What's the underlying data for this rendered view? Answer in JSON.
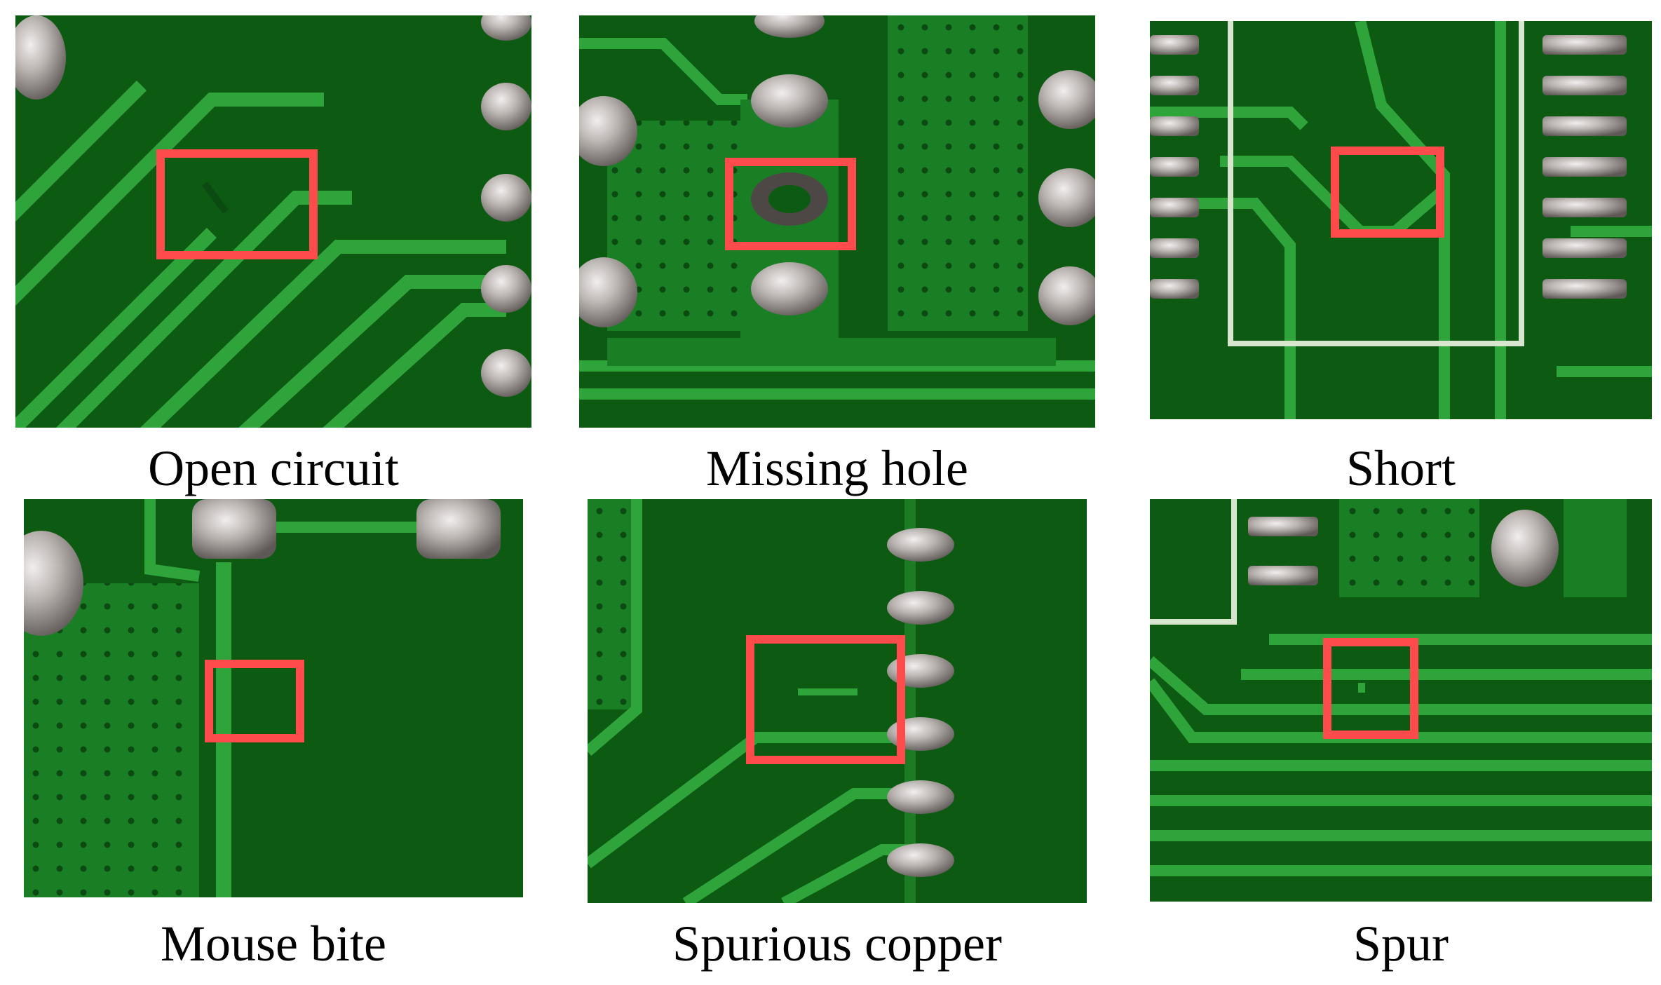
{
  "panels": [
    {
      "id": "open-circuit",
      "caption": "Open circuit"
    },
    {
      "id": "missing-hole",
      "caption": "Missing hole"
    },
    {
      "id": "short",
      "caption": "Short"
    },
    {
      "id": "mouse-bite",
      "caption": "Mouse bite"
    },
    {
      "id": "spurious-copper",
      "caption": "Spurious copper"
    },
    {
      "id": "spur",
      "caption": "Spur"
    }
  ],
  "colors": {
    "board": "#0d5a13",
    "trace": "#2fa43a",
    "pad": "#b9b3b0",
    "marker": "#ff4b4b",
    "silkscreen": "#d9e6cf"
  }
}
